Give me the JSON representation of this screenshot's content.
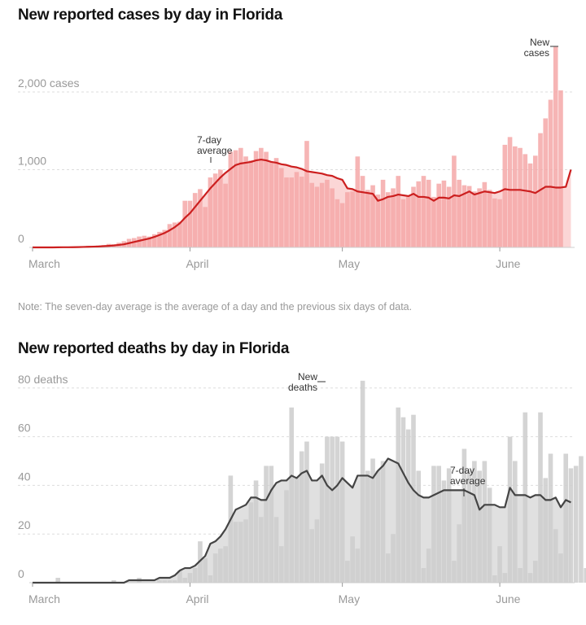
{
  "cases_chart": {
    "title": "New reported cases by day in Florida",
    "note": "Note: The seven-day average is the average of a day and the previous six days of data."
  },
  "deaths_chart": {
    "title": "New reported deaths by day in Florida"
  },
  "chart_data": [
    {
      "type": "bar",
      "title": "New reported cases by day in Florida",
      "xlabel": "",
      "ylabel": "cases",
      "ylim": [
        0,
        2700
      ],
      "y_ticks": [
        0,
        1000,
        2000
      ],
      "y_tick_labels": [
        "0",
        "1,000",
        "2,000 cases"
      ],
      "x_tick_labels": [
        "March",
        "April",
        "May",
        "June"
      ],
      "x_tick_days": [
        0,
        31,
        61,
        92
      ],
      "grid": true,
      "colors": {
        "bar": "#f5a8a8",
        "bar_light": "#fbd6d6",
        "line": "#cc1f1f"
      },
      "annotations": [
        {
          "text": [
            "New",
            "cases"
          ],
          "target": "bar"
        },
        {
          "text": [
            "7-day",
            "average"
          ],
          "target": "line"
        }
      ],
      "series": [
        {
          "name": "New cases",
          "values": [
            0,
            0,
            0,
            0,
            0,
            2,
            5,
            0,
            7,
            10,
            15,
            20,
            15,
            25,
            30,
            45,
            40,
            60,
            80,
            110,
            120,
            140,
            150,
            140,
            170,
            200,
            225,
            300,
            320,
            330,
            600,
            600,
            700,
            750,
            520,
            900,
            950,
            1000,
            820,
            1230,
            1250,
            1280,
            1170,
            1120,
            1240,
            1280,
            1230,
            1100,
            1150,
            1020,
            900,
            900,
            970,
            910,
            1370,
            830,
            780,
            830,
            870,
            760,
            620,
            570,
            710,
            720,
            1170,
            920,
            740,
            800,
            680,
            870,
            710,
            760,
            920,
            620,
            660,
            780,
            850,
            920,
            870,
            650,
            820,
            860,
            780,
            1180,
            870,
            800,
            790,
            720,
            760,
            840,
            740,
            630,
            620,
            1320,
            1420,
            1300,
            1280,
            1200,
            1080,
            1180,
            1470,
            1660,
            1900,
            2580,
            2020
          ]
        },
        {
          "name": "7-day average",
          "values": [
            0,
            0,
            0,
            0,
            0,
            1,
            2,
            2,
            3,
            4,
            6,
            8,
            10,
            12,
            16,
            20,
            25,
            32,
            40,
            55,
            70,
            85,
            100,
            115,
            135,
            160,
            185,
            220,
            260,
            310,
            380,
            440,
            520,
            600,
            680,
            760,
            830,
            900,
            960,
            1010,
            1060,
            1080,
            1090,
            1100,
            1120,
            1130,
            1120,
            1100,
            1090,
            1070,
            1060,
            1040,
            1030,
            1010,
            980,
            970,
            960,
            950,
            930,
            920,
            890,
            870,
            760,
            750,
            720,
            710,
            700,
            690,
            600,
            620,
            650,
            660,
            680,
            670,
            660,
            690,
            650,
            650,
            640,
            600,
            640,
            640,
            630,
            670,
            660,
            690,
            720,
            680,
            700,
            720,
            710,
            700,
            720,
            750,
            740,
            740,
            740,
            730,
            720,
            700,
            740,
            780,
            780,
            770,
            770,
            780,
            1000
          ]
        }
      ]
    },
    {
      "type": "bar",
      "title": "New reported deaths by day in Florida",
      "xlabel": "",
      "ylabel": "deaths",
      "ylim": [
        0,
        84
      ],
      "y_ticks": [
        0,
        20,
        40,
        60,
        80
      ],
      "y_tick_labels": [
        "0",
        "20",
        "40",
        "60",
        "80 deaths"
      ],
      "x_tick_labels": [
        "March",
        "April",
        "May",
        "June"
      ],
      "x_tick_days": [
        0,
        31,
        61,
        92
      ],
      "grid": true,
      "colors": {
        "bar": "#cccccc",
        "bar_light": "#e0e0e0",
        "line": "#444444"
      },
      "annotations": [
        {
          "text": [
            "New",
            "deaths"
          ],
          "target": "bar"
        },
        {
          "text": [
            "7-day",
            "average"
          ],
          "target": "line"
        }
      ],
      "series": [
        {
          "name": "New deaths",
          "values": [
            0,
            0,
            0,
            0,
            0,
            2,
            0,
            0,
            0,
            0,
            0,
            0,
            0,
            0,
            0,
            0,
            1,
            0,
            0,
            0,
            0,
            2,
            0,
            0,
            0,
            1,
            1,
            1,
            1,
            5,
            2,
            4,
            6,
            17,
            10,
            3,
            12,
            14,
            15,
            44,
            25,
            25,
            26,
            33,
            42,
            27,
            48,
            48,
            27,
            15,
            38,
            72,
            43,
            54,
            58,
            22,
            26,
            49,
            60,
            60,
            60,
            58,
            9,
            19,
            14,
            83,
            46,
            51,
            46,
            50,
            12,
            20,
            72,
            68,
            63,
            69,
            46,
            6,
            14,
            48,
            48,
            42,
            47,
            9,
            24,
            55,
            46,
            50,
            46,
            50,
            39,
            3,
            15,
            4,
            60,
            50,
            6,
            70,
            4,
            9,
            70,
            43,
            53,
            22,
            12,
            53,
            47,
            48,
            52,
            6
          ]
        },
        {
          "name": "7-day average",
          "values": [
            0,
            0,
            0,
            0,
            0,
            0,
            0,
            0,
            0,
            0,
            0,
            0,
            0,
            0,
            0,
            0,
            0,
            0,
            0,
            1,
            1,
            1,
            1,
            1,
            1,
            2,
            2,
            2,
            3,
            5,
            6,
            6,
            7,
            9,
            11,
            16,
            17,
            19,
            22,
            26,
            30,
            31,
            32,
            35,
            35,
            34,
            34,
            38,
            41,
            42,
            42,
            44,
            43,
            45,
            46,
            42,
            42,
            44,
            40,
            38,
            40,
            43,
            41,
            39,
            44,
            44,
            44,
            43,
            46,
            48,
            51,
            50,
            49,
            45,
            41,
            38,
            36,
            35,
            35,
            36,
            37,
            38,
            38,
            38,
            38,
            38,
            37,
            36,
            30,
            32,
            32,
            32,
            31,
            31,
            39,
            36,
            36,
            36,
            35,
            36,
            36,
            34,
            34,
            35,
            31,
            34,
            33
          ]
        }
      ]
    }
  ]
}
